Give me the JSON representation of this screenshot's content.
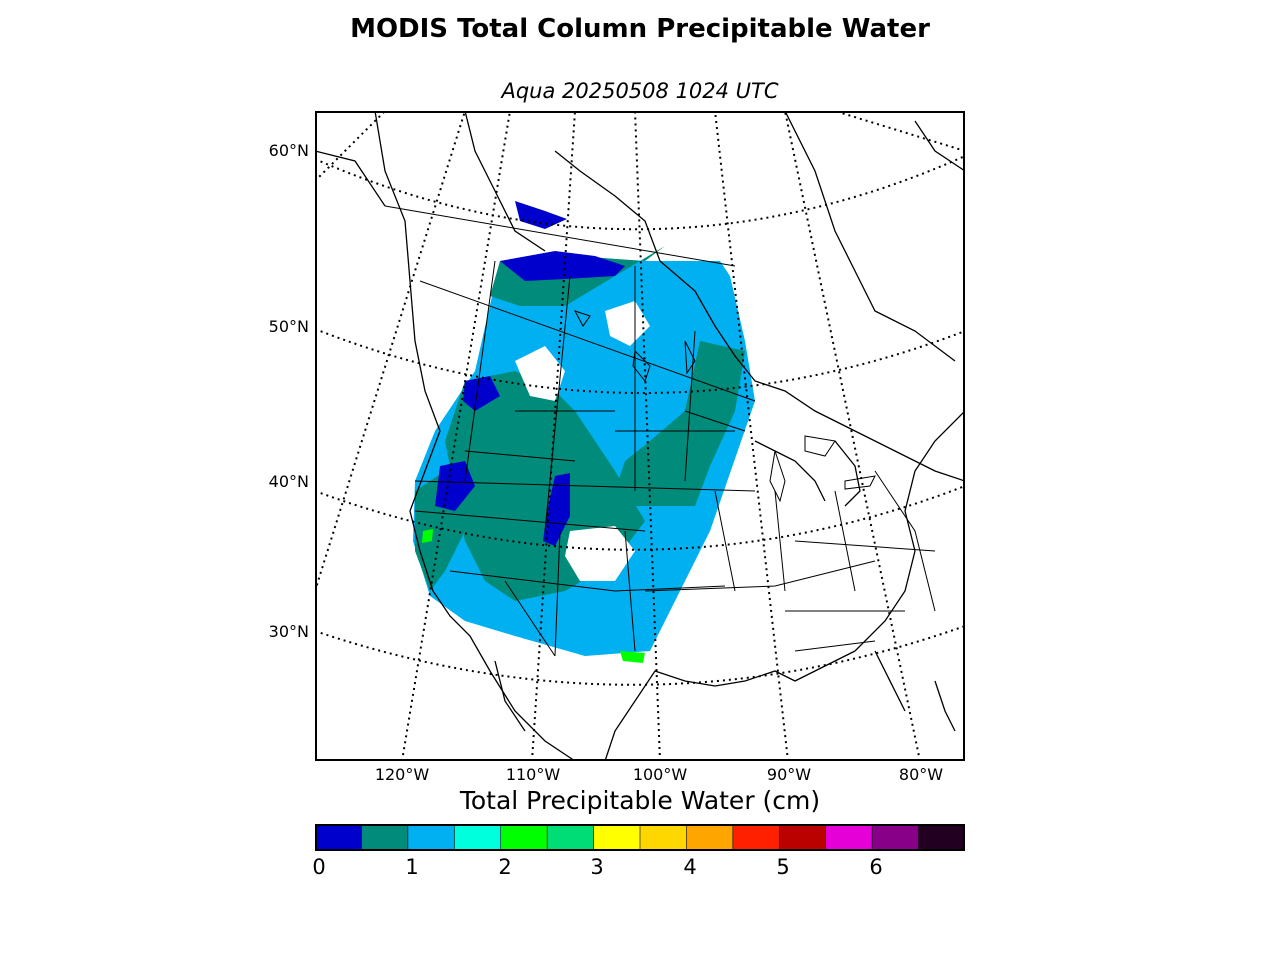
{
  "header": {
    "title": "MODIS Total Column Precipitable Water",
    "subtitle": "Aqua 20250508 1024 UTC"
  },
  "axes": {
    "lat_labels": [
      "60°N",
      "50°N",
      "40°N",
      "30°N"
    ],
    "lon_labels": [
      "120°W",
      "110°W",
      "100°W",
      "90°W",
      "80°W"
    ]
  },
  "colorbar": {
    "title": "Total Precipitable Water (cm)",
    "ticks": [
      "0",
      "1",
      "2",
      "3",
      "4",
      "5",
      "6"
    ],
    "colors": [
      "#0000cc",
      "#008b7a",
      "#00b0f0",
      "#00ffdd",
      "#00ff00",
      "#00dd77",
      "#ffff00",
      "#ffd700",
      "#ffa500",
      "#ff2000",
      "#bb0000",
      "#e600d8",
      "#880088",
      "#220022"
    ]
  },
  "map_colors": {
    "very_low": "#0000cc",
    "low": "#008b7a",
    "mid": "#00b0f0",
    "cyan": "#00ffdd",
    "green": "#00ff00"
  }
}
